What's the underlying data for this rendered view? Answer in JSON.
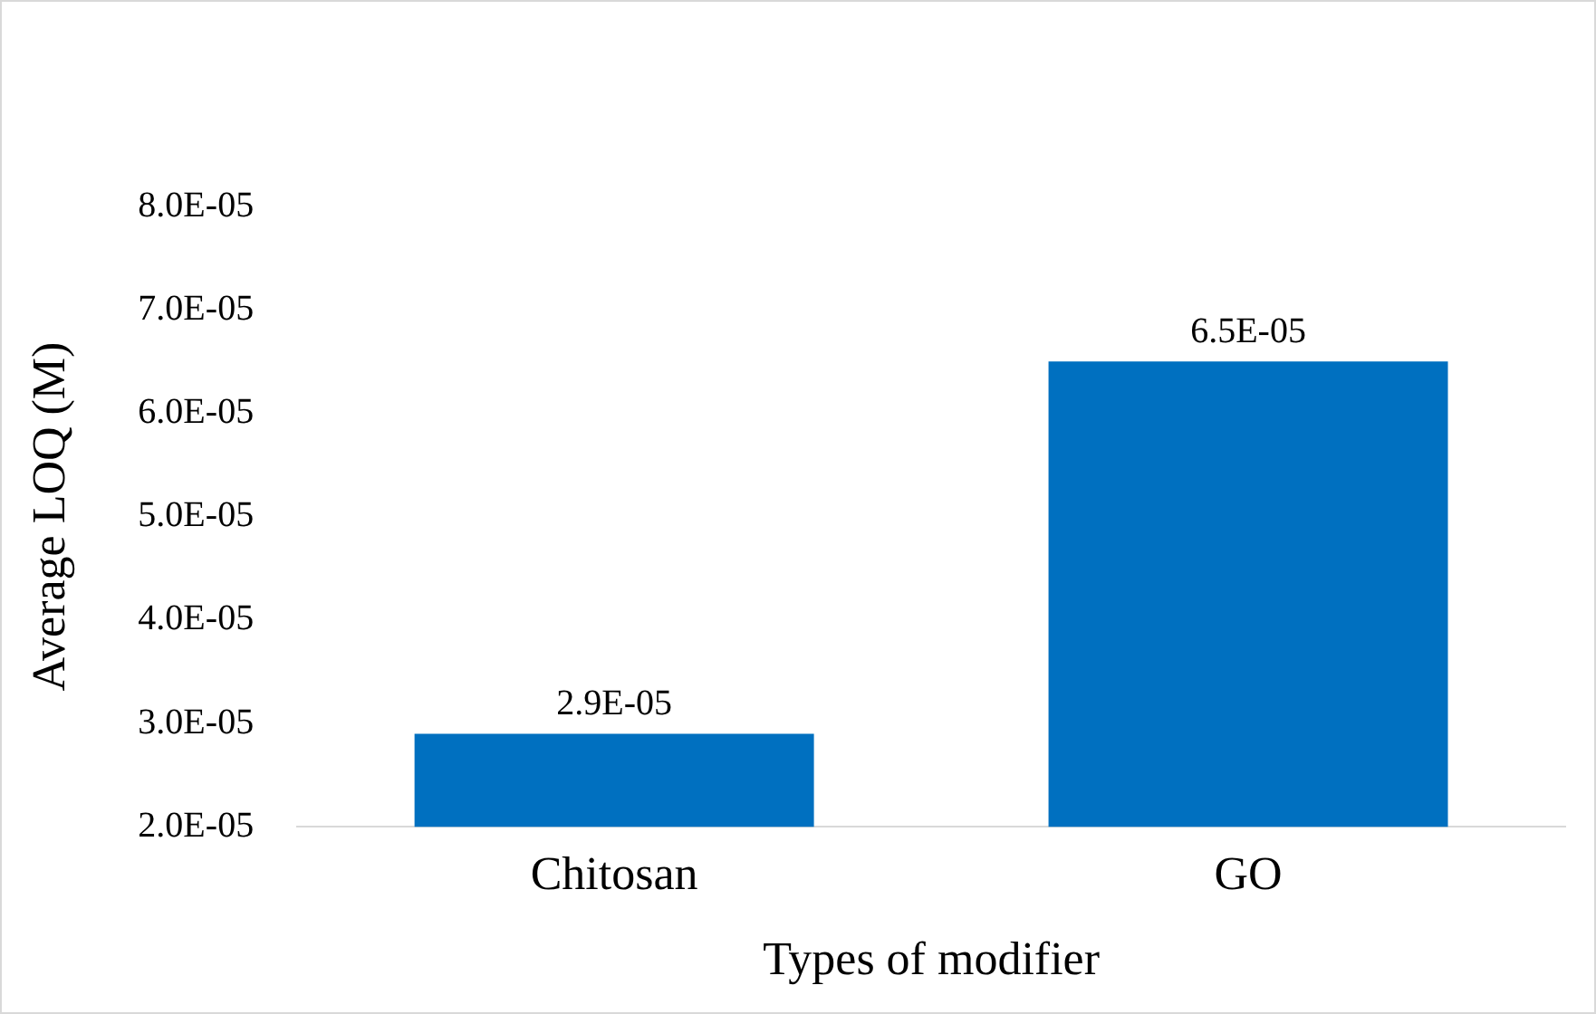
{
  "chart_data": {
    "type": "bar",
    "xlabel": "Types of modifier",
    "ylabel": "Average LOQ (M)",
    "categories": [
      "Chitosan",
      "GO"
    ],
    "series": [
      {
        "color": "#0070c0",
        "values": [
          2.9e-05,
          6.5e-05
        ],
        "value_labels": [
          "2.9E-05",
          "6.5E-05"
        ]
      }
    ],
    "ylim": [
      2e-05,
      8e-05
    ],
    "yticks": [
      {
        "value": 2e-05,
        "label": "2.0E-05"
      },
      {
        "value": 3e-05,
        "label": "3.0E-05"
      },
      {
        "value": 4e-05,
        "label": "4.0E-05"
      },
      {
        "value": 5e-05,
        "label": "5.0E-05"
      },
      {
        "value": 6e-05,
        "label": "6.0E-05"
      },
      {
        "value": 7e-05,
        "label": "7.0E-05"
      },
      {
        "value": 8e-05,
        "label": "8.0E-05"
      }
    ],
    "grid": false,
    "legend": false
  }
}
